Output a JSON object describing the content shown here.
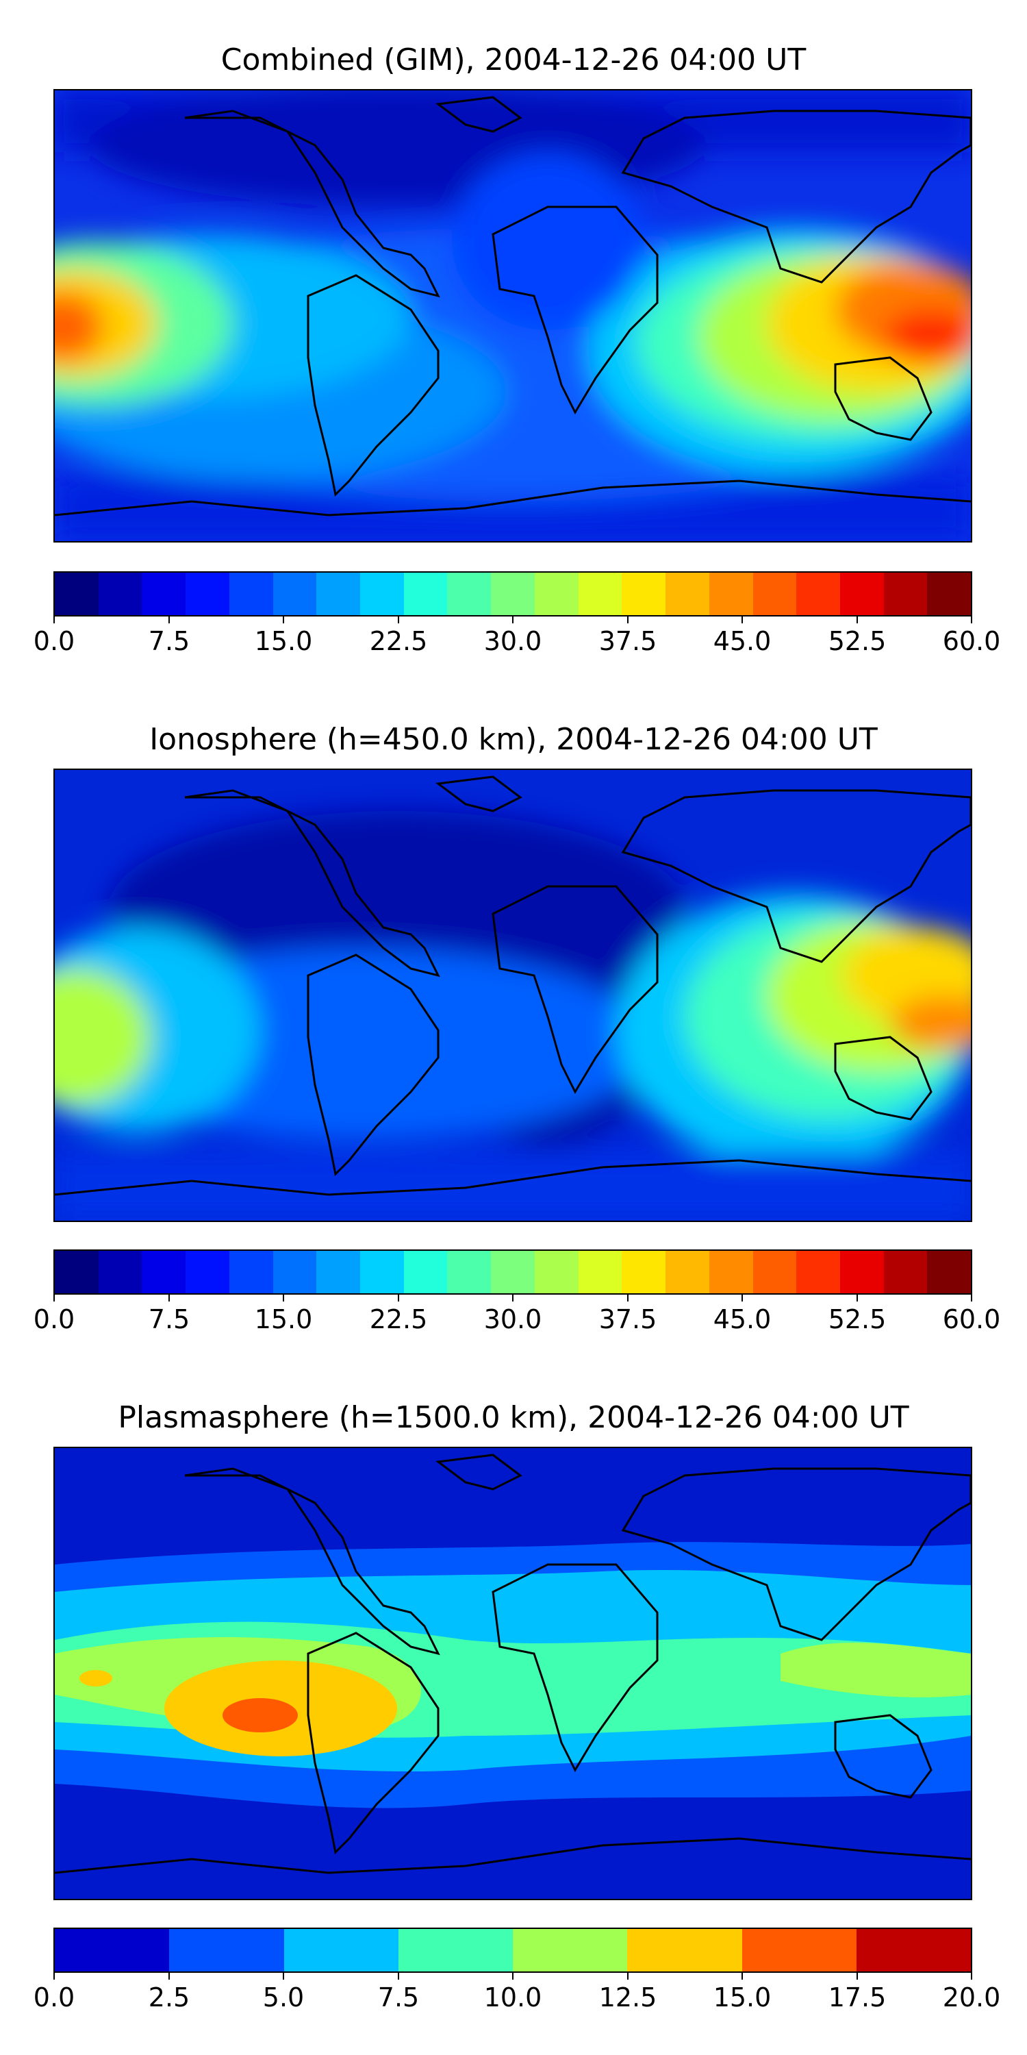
{
  "panels": [
    {
      "title": "Combined (GIM), 2004-12-26 04:00 UT",
      "colorbar": {
        "ticks": [
          "0.0",
          "7.5",
          "15.0",
          "22.5",
          "30.0",
          "37.5",
          "45.0",
          "52.5",
          "60.0"
        ],
        "range": [
          0,
          60
        ],
        "colors": [
          "#00007f",
          "#0000b2",
          "#0000e8",
          "#0011ff",
          "#0043ff",
          "#0070ff",
          "#00a0ff",
          "#00d0ff",
          "#22ffdb",
          "#4cffab",
          "#7cff7c",
          "#abff4c",
          "#dbff22",
          "#ffe600",
          "#ffb900",
          "#ff8c00",
          "#ff5e00",
          "#ff3000",
          "#e80000",
          "#b20000",
          "#7f0000"
        ]
      }
    },
    {
      "title": "Ionosphere  (h=450.0 km), 2004-12-26 04:00 UT",
      "colorbar": {
        "ticks": [
          "0.0",
          "7.5",
          "15.0",
          "22.5",
          "30.0",
          "37.5",
          "45.0",
          "52.5",
          "60.0"
        ],
        "range": [
          0,
          60
        ],
        "colors": [
          "#00007f",
          "#0000b2",
          "#0000e8",
          "#0011ff",
          "#0043ff",
          "#0070ff",
          "#00a0ff",
          "#00d0ff",
          "#22ffdb",
          "#4cffab",
          "#7cff7c",
          "#abff4c",
          "#dbff22",
          "#ffe600",
          "#ffb900",
          "#ff8c00",
          "#ff5e00",
          "#ff3000",
          "#e80000",
          "#b20000",
          "#7f0000"
        ]
      }
    },
    {
      "title": "Plasmasphere (h=1500.0 km), 2004-12-26 04:00 UT",
      "colorbar": {
        "ticks": [
          "0.0",
          "2.5",
          "5.0",
          "7.5",
          "10.0",
          "12.5",
          "15.0",
          "17.5",
          "20.0"
        ],
        "range": [
          0,
          20
        ],
        "colors": [
          "#0000cc",
          "#0050ff",
          "#00c0ff",
          "#40ffb0",
          "#a0ff50",
          "#ffcc00",
          "#ff5a00",
          "#c00000"
        ]
      }
    }
  ]
}
